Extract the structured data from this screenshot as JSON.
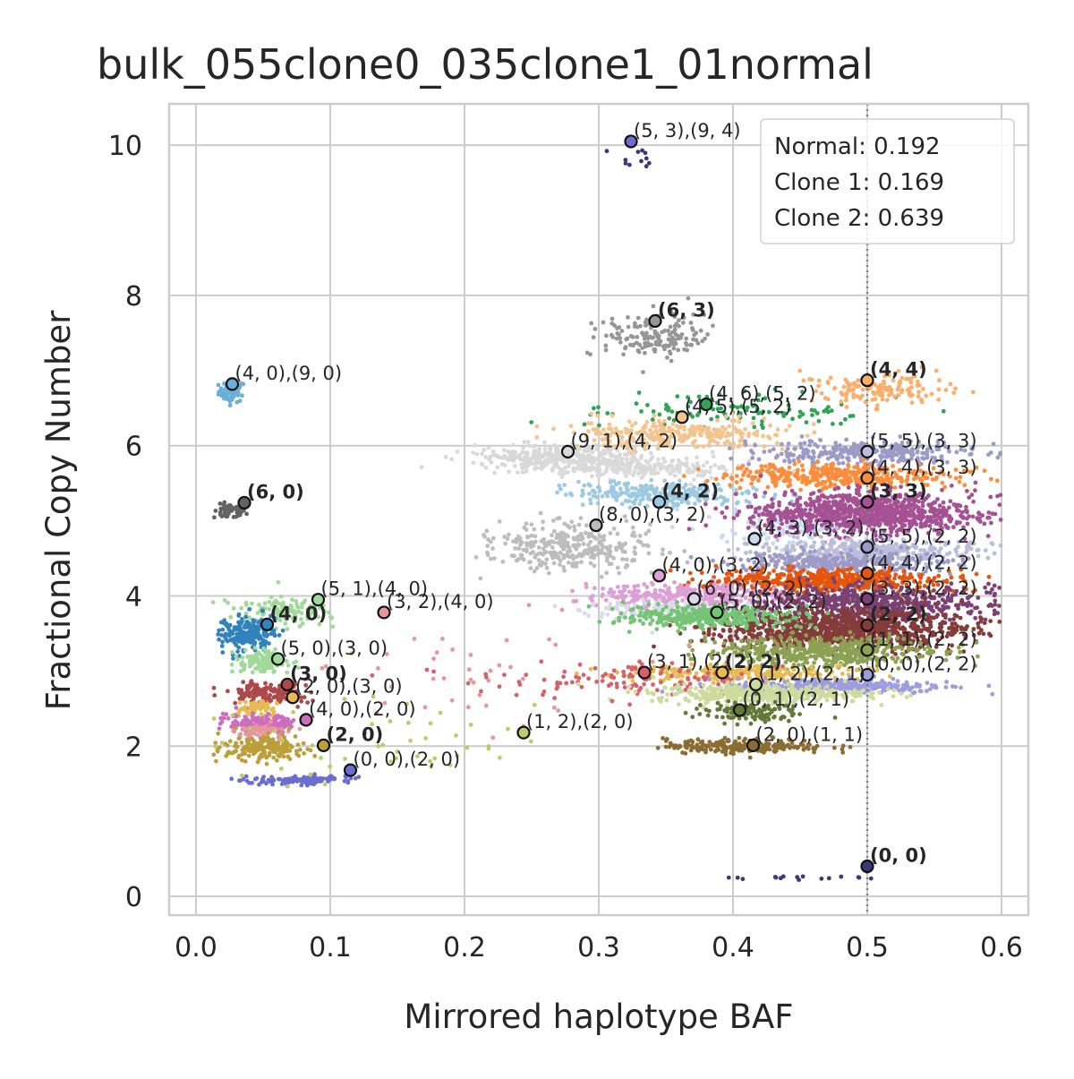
{
  "chart_data": {
    "type": "scatter",
    "title": "bulk_055clone0_035clone1_01normal",
    "xlabel": "Mirrored haplotype BAF",
    "ylabel": "Fractional Copy Number",
    "xlim": [
      -0.02,
      0.62
    ],
    "ylim": [
      -0.25,
      10.55
    ],
    "xticks": [
      "0.0",
      "0.1",
      "0.2",
      "0.3",
      "0.4",
      "0.5",
      "0.6"
    ],
    "xtick_values": [
      0.0,
      0.1,
      0.2,
      0.3,
      0.4,
      0.5,
      0.6
    ],
    "yticks": [
      "0",
      "2",
      "4",
      "6",
      "8",
      "10"
    ],
    "ytick_values": [
      0,
      2,
      4,
      6,
      8,
      10
    ],
    "grid": true,
    "vline": {
      "x": 0.5,
      "style": "dotted",
      "color": "#808080"
    },
    "legend": {
      "placement": "top-right",
      "entries": [
        "Normal: 0.192",
        "Clone 1: 0.169",
        "Clone 2: 0.639"
      ]
    },
    "clusters": [
      {
        "color": "#6baed6",
        "x": 0.027,
        "y": 6.72,
        "sx": 0.005,
        "sy": 0.07,
        "n": 60
      },
      {
        "color": "#636363",
        "x": 0.025,
        "y": 5.12,
        "sx": 0.006,
        "sy": 0.05,
        "n": 50
      },
      {
        "color": "#a1d99b",
        "x": 0.065,
        "y": 3.8,
        "sx": 0.018,
        "sy": 0.1,
        "n": 120
      },
      {
        "color": "#3182bd",
        "x": 0.038,
        "y": 3.5,
        "sx": 0.01,
        "sy": 0.1,
        "n": 220
      },
      {
        "color": "#a1d99b",
        "x": 0.048,
        "y": 3.12,
        "sx": 0.01,
        "sy": 0.07,
        "n": 140
      },
      {
        "color": "#ad494a",
        "x": 0.055,
        "y": 2.7,
        "sx": 0.015,
        "sy": 0.06,
        "n": 170
      },
      {
        "color": "#e7ba52",
        "x": 0.045,
        "y": 2.5,
        "sx": 0.01,
        "sy": 0.05,
        "n": 60
      },
      {
        "color": "#ce6dbd",
        "x": 0.05,
        "y": 2.3,
        "sx": 0.013,
        "sy": 0.06,
        "n": 160
      },
      {
        "color": "#e7969c",
        "x": 0.045,
        "y": 2.2,
        "sx": 0.01,
        "sy": 0.05,
        "n": 60
      },
      {
        "color": "#bd9e39",
        "x": 0.05,
        "y": 1.97,
        "sx": 0.016,
        "sy": 0.08,
        "n": 170
      },
      {
        "color": "#6b6ecf",
        "x": 0.08,
        "y": 1.55,
        "sx": 0.02,
        "sy": 0.03,
        "n": 110
      },
      {
        "color": "#969696",
        "x": 0.34,
        "y": 7.45,
        "sx": 0.02,
        "sy": 0.15,
        "n": 160
      },
      {
        "color": "#31a354",
        "x": 0.4,
        "y": 6.45,
        "sx": 0.05,
        "sy": 0.12,
        "n": 110
      },
      {
        "color": "#f3c48e",
        "x": 0.36,
        "y": 6.15,
        "sx": 0.04,
        "sy": 0.1,
        "n": 300
      },
      {
        "color": "#fdae6b",
        "x": 0.51,
        "y": 6.75,
        "sx": 0.03,
        "sy": 0.1,
        "n": 140
      },
      {
        "color": "#d9d9d9",
        "x": 0.27,
        "y": 5.85,
        "sx": 0.03,
        "sy": 0.08,
        "n": 320
      },
      {
        "color": "#dadada",
        "x": 0.33,
        "y": 5.7,
        "sx": 0.035,
        "sy": 0.07,
        "n": 240
      },
      {
        "color": "#9ecae1",
        "x": 0.35,
        "y": 5.35,
        "sx": 0.035,
        "sy": 0.08,
        "n": 260
      },
      {
        "color": "#bdbdbd",
        "x": 0.28,
        "y": 4.65,
        "sx": 0.03,
        "sy": 0.15,
        "n": 320
      },
      {
        "color": "#c6dbef",
        "x": 0.44,
        "y": 4.9,
        "sx": 0.03,
        "sy": 0.1,
        "n": 120
      },
      {
        "color": "#9e9ac8",
        "x": 0.5,
        "y": 5.9,
        "sx": 0.04,
        "sy": 0.08,
        "n": 300
      },
      {
        "color": "#fd8d3c",
        "x": 0.48,
        "y": 5.6,
        "sx": 0.04,
        "sy": 0.08,
        "n": 400
      },
      {
        "color": "#a55194",
        "x": 0.5,
        "y": 5.1,
        "sx": 0.04,
        "sy": 0.14,
        "n": 900
      },
      {
        "color": "#bcbddc",
        "x": 0.5,
        "y": 4.6,
        "sx": 0.04,
        "sy": 0.08,
        "n": 350
      },
      {
        "color": "#9e9ac8",
        "x": 0.48,
        "y": 4.45,
        "sx": 0.04,
        "sy": 0.07,
        "n": 300
      },
      {
        "color": "#e6550d",
        "x": 0.47,
        "y": 4.2,
        "sx": 0.04,
        "sy": 0.07,
        "n": 500
      },
      {
        "color": "#de9ed6",
        "x": 0.37,
        "y": 4.0,
        "sx": 0.035,
        "sy": 0.08,
        "n": 320
      },
      {
        "color": "#dadaeb",
        "x": 0.36,
        "y": 3.8,
        "sx": 0.035,
        "sy": 0.06,
        "n": 200
      },
      {
        "color": "#7b4173",
        "x": 0.5,
        "y": 3.9,
        "sx": 0.045,
        "sy": 0.12,
        "n": 600
      },
      {
        "color": "#843c39",
        "x": 0.48,
        "y": 3.55,
        "sx": 0.045,
        "sy": 0.13,
        "n": 1000
      },
      {
        "color": "#74c476",
        "x": 0.38,
        "y": 3.72,
        "sx": 0.03,
        "sy": 0.07,
        "n": 330
      },
      {
        "color": "#8ca252",
        "x": 0.47,
        "y": 3.25,
        "sx": 0.04,
        "sy": 0.1,
        "n": 500
      },
      {
        "color": "#e7ba52",
        "x": 0.4,
        "y": 2.97,
        "sx": 0.04,
        "sy": 0.05,
        "n": 250
      },
      {
        "color": "#d6616b",
        "x": 0.34,
        "y": 2.9,
        "sx": 0.04,
        "sy": 0.1,
        "n": 100
      },
      {
        "color": "#9c9ede",
        "x": 0.48,
        "y": 2.8,
        "sx": 0.04,
        "sy": 0.05,
        "n": 300
      },
      {
        "color": "#cedb9c",
        "x": 0.42,
        "y": 2.7,
        "sx": 0.04,
        "sy": 0.06,
        "n": 400
      },
      {
        "color": "#637939",
        "x": 0.41,
        "y": 2.45,
        "sx": 0.02,
        "sy": 0.07,
        "n": 120
      },
      {
        "color": "#8c6d31",
        "x": 0.41,
        "y": 2.0,
        "sx": 0.03,
        "sy": 0.05,
        "n": 220
      },
      {
        "color": "#393b79",
        "x": 0.43,
        "y": 0.25,
        "sx": 0.03,
        "sy": 0.01,
        "n": 16
      },
      {
        "color": "#393b79",
        "x": 0.325,
        "y": 9.85,
        "sx": 0.008,
        "sy": 0.1,
        "n": 12
      },
      {
        "color": "#b5cf6b",
        "x": 0.15,
        "y": 2.1,
        "sx": 0.06,
        "sy": 0.3,
        "n": 50
      },
      {
        "color": "#e7969c",
        "x": 0.2,
        "y": 3.0,
        "sx": 0.07,
        "sy": 0.5,
        "n": 40
      },
      {
        "color": "#d6616b",
        "x": 0.25,
        "y": 2.9,
        "sx": 0.05,
        "sy": 0.15,
        "n": 25
      }
    ],
    "annotations": [
      {
        "x": 0.027,
        "y": 6.82,
        "text": "(4, 0),(9, 0)",
        "bold": false,
        "color": "#6baed6"
      },
      {
        "x": 0.036,
        "y": 5.24,
        "text": "(6, 0)",
        "bold": true,
        "color": "#636363"
      },
      {
        "x": 0.091,
        "y": 3.95,
        "text": "(5, 1),(4, 0)",
        "bold": false,
        "color": "#a1d99b"
      },
      {
        "x": 0.14,
        "y": 3.78,
        "text": "(3, 2),(4, 0)",
        "bold": false,
        "color": "#e7969c"
      },
      {
        "x": 0.053,
        "y": 3.62,
        "text": "(4, 0)",
        "bold": true,
        "color": "#3182bd"
      },
      {
        "x": 0.061,
        "y": 3.16,
        "text": "(5, 0),(3, 0)",
        "bold": false,
        "color": "#a1d99b"
      },
      {
        "x": 0.068,
        "y": 2.82,
        "text": "(3, 0)",
        "bold": true,
        "color": "#ad494a"
      },
      {
        "x": 0.072,
        "y": 2.65,
        "text": "(2, 0),(3, 0)",
        "bold": false,
        "color": "#e7ba52"
      },
      {
        "x": 0.082,
        "y": 2.35,
        "text": "(4, 0),(2, 0)",
        "bold": false,
        "color": "#ce6dbd"
      },
      {
        "x": 0.095,
        "y": 2.01,
        "text": "(2, 0)",
        "bold": true,
        "color": "#bd9e39"
      },
      {
        "x": 0.115,
        "y": 1.68,
        "text": "(0, 0),(2, 0)",
        "bold": false,
        "color": "#6b6ecf"
      },
      {
        "x": 0.244,
        "y": 2.18,
        "text": "(1, 2),(2, 0)",
        "bold": false,
        "color": "#b5cf6b"
      },
      {
        "x": 0.324,
        "y": 10.05,
        "text": "(5, 3),(9, 4)",
        "bold": false,
        "color": "#6b6ecf"
      },
      {
        "x": 0.342,
        "y": 7.66,
        "text": "(6, 3)",
        "bold": true,
        "color": "#969696"
      },
      {
        "x": 0.38,
        "y": 6.55,
        "text": "(4, 6),(5, 2)",
        "bold": false,
        "color": "#31a354"
      },
      {
        "x": 0.362,
        "y": 6.38,
        "text": "(4, 5),(5, 2)",
        "bold": false,
        "color": "#f3c48e"
      },
      {
        "x": 0.5,
        "y": 6.87,
        "text": "(4, 4)",
        "bold": true,
        "color": "#fdae6b"
      },
      {
        "x": 0.277,
        "y": 5.92,
        "text": "(9, 1),(4, 2)",
        "bold": false,
        "color": "#d9d9d9"
      },
      {
        "x": 0.5,
        "y": 5.92,
        "text": "(5, 5),(3, 3)",
        "bold": false,
        "color": "#bcbddc"
      },
      {
        "x": 0.5,
        "y": 5.57,
        "text": "(4, 4),(3, 3)",
        "bold": false,
        "color": "#fd8d3c"
      },
      {
        "x": 0.345,
        "y": 5.25,
        "text": "(4, 2)",
        "bold": true,
        "color": "#9ecae1"
      },
      {
        "x": 0.5,
        "y": 5.25,
        "text": "(3, 3)",
        "bold": true,
        "color": "#a55194"
      },
      {
        "x": 0.298,
        "y": 4.94,
        "text": "(8, 0),(3, 2)",
        "bold": false,
        "color": "#bdbdbd"
      },
      {
        "x": 0.416,
        "y": 4.76,
        "text": "(4, 3),(3, 2)",
        "bold": false,
        "color": "#c6dbef"
      },
      {
        "x": 0.5,
        "y": 4.65,
        "text": "(5, 5),(2, 2)",
        "bold": false,
        "color": "#9e9ac8"
      },
      {
        "x": 0.345,
        "y": 4.27,
        "text": "(4, 0),(3, 2)",
        "bold": false,
        "color": "#de9ed6"
      },
      {
        "x": 0.5,
        "y": 4.3,
        "text": "(4, 4),(2, 2)",
        "bold": false,
        "color": "#e6550d"
      },
      {
        "x": 0.371,
        "y": 3.96,
        "text": "(6, 0),(2, 2)",
        "bold": false,
        "color": "#dadaeb"
      },
      {
        "x": 0.5,
        "y": 3.96,
        "text": "(3, 3),(2, 2)",
        "bold": false,
        "color": "#7b4173"
      },
      {
        "x": 0.388,
        "y": 3.78,
        "text": "(5, 0),(2, 2)",
        "bold": false,
        "color": "#74c476"
      },
      {
        "x": 0.5,
        "y": 3.61,
        "text": "(2, 2)",
        "bold": true,
        "color": "#843c39"
      },
      {
        "x": 0.5,
        "y": 3.28,
        "text": "(1, 1),(2, 2)",
        "bold": false,
        "color": "#8ca252"
      },
      {
        "x": 0.334,
        "y": 2.98,
        "text": "(3, 1),(2, 2)",
        "bold": false,
        "color": "#d6616b"
      },
      {
        "x": 0.392,
        "y": 2.98,
        "text": "(2, 2)",
        "bold": true,
        "color": "#e7ba52"
      },
      {
        "x": 0.5,
        "y": 2.95,
        "text": "(0, 0),(2, 2)",
        "bold": false,
        "color": "#9c9ede"
      },
      {
        "x": 0.417,
        "y": 2.82,
        "text": "(1, 2),(2, 1)",
        "bold": false,
        "color": "#cedb9c"
      },
      {
        "x": 0.405,
        "y": 2.48,
        "text": "(0, 1),(2, 1)",
        "bold": false,
        "color": "#637939"
      },
      {
        "x": 0.415,
        "y": 2.01,
        "text": "(2, 0),(1, 1)",
        "bold": false,
        "color": "#8c6d31"
      },
      {
        "x": 0.5,
        "y": 0.4,
        "text": "(0, 0)",
        "bold": true,
        "color": "#393b79"
      }
    ]
  }
}
